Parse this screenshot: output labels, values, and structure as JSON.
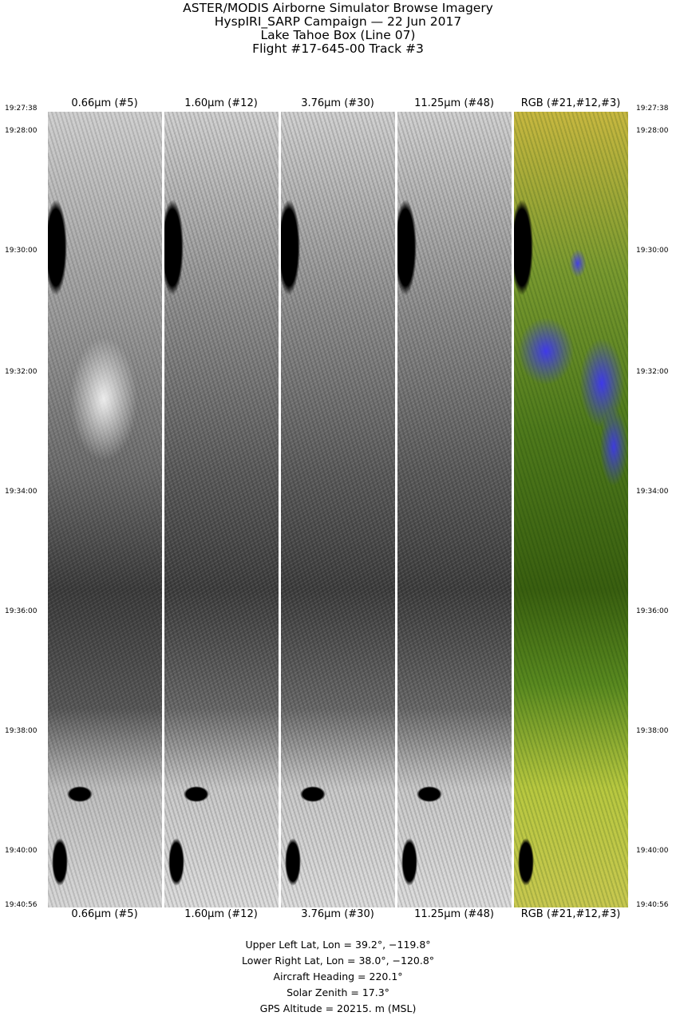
{
  "title_lines": [
    "ASTER/MODIS Airborne Simulator Browse Imagery",
    "HyspIRI_SARP Campaign — 22 Jun 2017",
    "Lake Tahoe Box (Line 07)",
    "Flight #17-645-00 Track #3"
  ],
  "panels": [
    {
      "label": "0.66μm (#5)",
      "kind": "grayscale"
    },
    {
      "label": "1.60μm (#12)",
      "kind": "grayscale"
    },
    {
      "label": "3.76μm (#30)",
      "kind": "grayscale"
    },
    {
      "label": "11.25μm (#48)",
      "kind": "grayscale"
    },
    {
      "label": "RGB (#21,#12,#3)",
      "kind": "false-color"
    }
  ],
  "time_labels": [
    "19:27:38",
    "19:28:00",
    "19:30:00",
    "19:32:00",
    "19:34:00",
    "19:36:00",
    "19:38:00",
    "19:40:00",
    "19:40:56"
  ],
  "info": {
    "upper_left": "Upper Left Lat, Lon =   39.2°, −119.8°",
    "lower_right": "Lower Right Lat, Lon =   38.0°, −120.8°",
    "heading": "Aircraft Heading =  220.1°",
    "solar_zenith": "Solar Zenith =   17.3°",
    "altitude": "GPS Altitude =  20215. m (MSL)"
  }
}
